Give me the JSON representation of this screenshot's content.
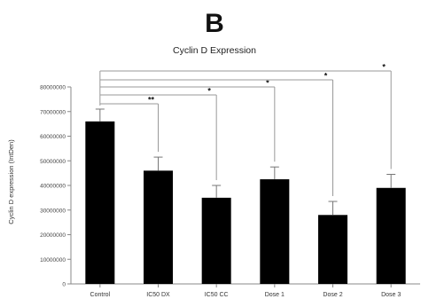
{
  "chart_data": {
    "type": "bar",
    "panel_label": "B",
    "title": "Cyclin D Expression",
    "ylabel": "Cyclin D expression  (IntDen)",
    "xlabel": "",
    "ylim": [
      0,
      80000000
    ],
    "yticks": [
      0,
      10000000,
      20000000,
      30000000,
      40000000,
      50000000,
      60000000,
      70000000,
      80000000
    ],
    "ytick_labels": [
      "0",
      "10000000",
      "20000000",
      "30000000",
      "40000000",
      "50000000",
      "60000000",
      "70000000",
      "80000000"
    ],
    "categories": [
      "Control",
      "IC50 DX",
      "IC50 CC",
      "Dose 1",
      "Dose 2",
      "Dose 3"
    ],
    "values": [
      66000000,
      46000000,
      35000000,
      42500000,
      28000000,
      39000000
    ],
    "errors": [
      5000000,
      5500000,
      5000000,
      5000000,
      5500000,
      5500000
    ],
    "bar_color": "#000000",
    "grid": false,
    "significance": [
      {
        "from": "Control",
        "to": "IC50 DX",
        "label": "**"
      },
      {
        "from": "Control",
        "to": "IC50 CC",
        "label": "*"
      },
      {
        "from": "Control",
        "to": "Dose 1",
        "label": "*"
      },
      {
        "from": "Control",
        "to": "Dose 2",
        "label": "*"
      },
      {
        "from": "Control",
        "to": "Dose 3",
        "label": "*"
      }
    ]
  }
}
